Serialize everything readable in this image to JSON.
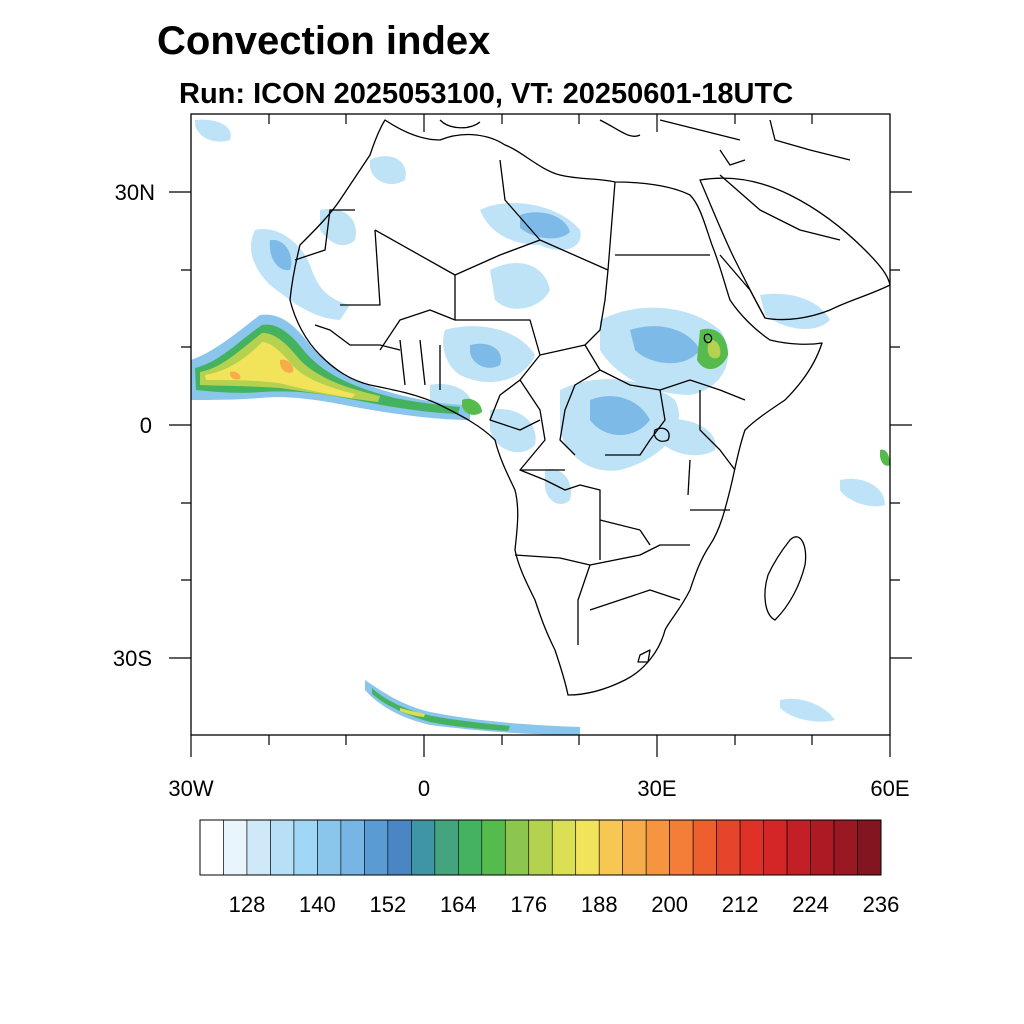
{
  "title": "Convection index",
  "subtitle": "Run: ICON 2025053100,  VT: 20250601-18UTC",
  "map": {
    "region": "Africa",
    "projection": "cylindrical equidistant",
    "lon_range": [
      -30,
      60
    ],
    "lat_range": [
      -40,
      40
    ],
    "lon_ticks": [
      {
        "value": -30,
        "label": "30W"
      },
      {
        "value": 0,
        "label": "0"
      },
      {
        "value": 30,
        "label": "30E"
      },
      {
        "value": 60,
        "label": "60E"
      }
    ],
    "lat_ticks": [
      {
        "value": 30,
        "label": "30N"
      },
      {
        "value": 0,
        "label": "0"
      },
      {
        "value": -30,
        "label": "30S"
      }
    ],
    "field": "convection index",
    "features": [
      "coastlines",
      "country borders"
    ]
  },
  "colorbar": {
    "colors": [
      "#ffffff",
      "#e9f5fc",
      "#cfe9f8",
      "#b7e0f7",
      "#a0d6f6",
      "#8ac5ec",
      "#77b5e5",
      "#5b9bd3",
      "#4a86c4",
      "#3f95a4",
      "#43a47e",
      "#45b260",
      "#55bb4c",
      "#8dc64e",
      "#b4d150",
      "#dbdf54",
      "#f2e45a",
      "#f8c652",
      "#f6ad49",
      "#f59540",
      "#f47d38",
      "#ee5f2f",
      "#e6452b",
      "#df3128",
      "#d42626",
      "#c21f27",
      "#ad1a24",
      "#991822",
      "#82151f"
    ],
    "labels": [
      "128",
      "140",
      "152",
      "164",
      "176",
      "188",
      "200",
      "212",
      "224",
      "236"
    ]
  }
}
